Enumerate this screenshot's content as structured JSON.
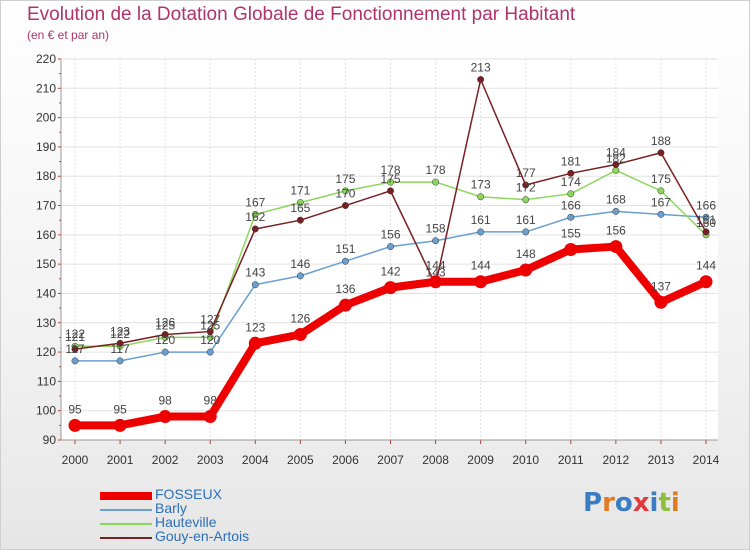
{
  "title": "Evolution de la Dotation Globale de Fonctionnement par Habitant",
  "subtitle": "(en € et par an)",
  "logo_text": "Proxiti",
  "colors": {
    "title": "#b0336a",
    "legend_text": "#2b6fb6",
    "logo": [
      "#3b7dc4",
      "#e07b22",
      "#3b7dc4",
      "#e03a3a",
      "#3b7dc4",
      "#8dbf3c",
      "#e07b22"
    ]
  },
  "chart_data": {
    "type": "line",
    "x": [
      "2000",
      "2001",
      "2002",
      "2003",
      "2004",
      "2005",
      "2006",
      "2007",
      "2008",
      "2009",
      "2010",
      "2011",
      "2012",
      "2013",
      "2014"
    ],
    "ylim": [
      90,
      220
    ],
    "yticks": [
      90,
      100,
      110,
      120,
      130,
      140,
      150,
      160,
      170,
      180,
      190,
      200,
      210,
      220
    ],
    "grid": true,
    "legend_position": "bottom-left",
    "series": [
      {
        "name": "FOSSEUX",
        "color": "#ee0000",
        "emphasis": true,
        "values": [
          95,
          95,
          98,
          98,
          123,
          126,
          136,
          142,
          144,
          144,
          148,
          155,
          156,
          137,
          144
        ],
        "labels": [
          "95",
          "95",
          "98",
          "98",
          "123",
          "126",
          "136",
          "142",
          "144",
          "144",
          "148",
          "155",
          "156",
          "137",
          "144"
        ]
      },
      {
        "name": "Barly",
        "color": "#6a9fd0",
        "values": [
          117,
          117,
          120,
          120,
          143,
          146,
          151,
          156,
          158,
          161,
          161,
          166,
          168,
          167,
          166
        ],
        "labels": [
          "117",
          "117",
          "120",
          "120",
          "143",
          "146",
          "151",
          "156",
          "158",
          "161",
          "161",
          "166",
          "168",
          "167",
          "166"
        ]
      },
      {
        "name": "Hauteville",
        "color": "#8dd65c",
        "values": [
          122,
          122,
          125,
          125,
          167,
          171,
          175,
          178,
          178,
          173,
          172,
          174,
          182,
          175,
          160
        ],
        "labels": [
          "122",
          "122",
          "125",
          "125",
          "167",
          "171",
          "175",
          "178",
          "178",
          "173",
          "172",
          "174",
          "182",
          "175",
          "160"
        ]
      },
      {
        "name": "Gouy-en-Artois",
        "color": "#7a1f24",
        "values": [
          121,
          123,
          126,
          127,
          162,
          165,
          170,
          175,
          143,
          213,
          177,
          181,
          184,
          188,
          161
        ],
        "labels": [
          "121",
          "123",
          "126",
          "127",
          "162",
          "165",
          "170",
          "175",
          "143",
          "213",
          "177",
          "181",
          "184",
          "188",
          "161"
        ]
      }
    ]
  }
}
